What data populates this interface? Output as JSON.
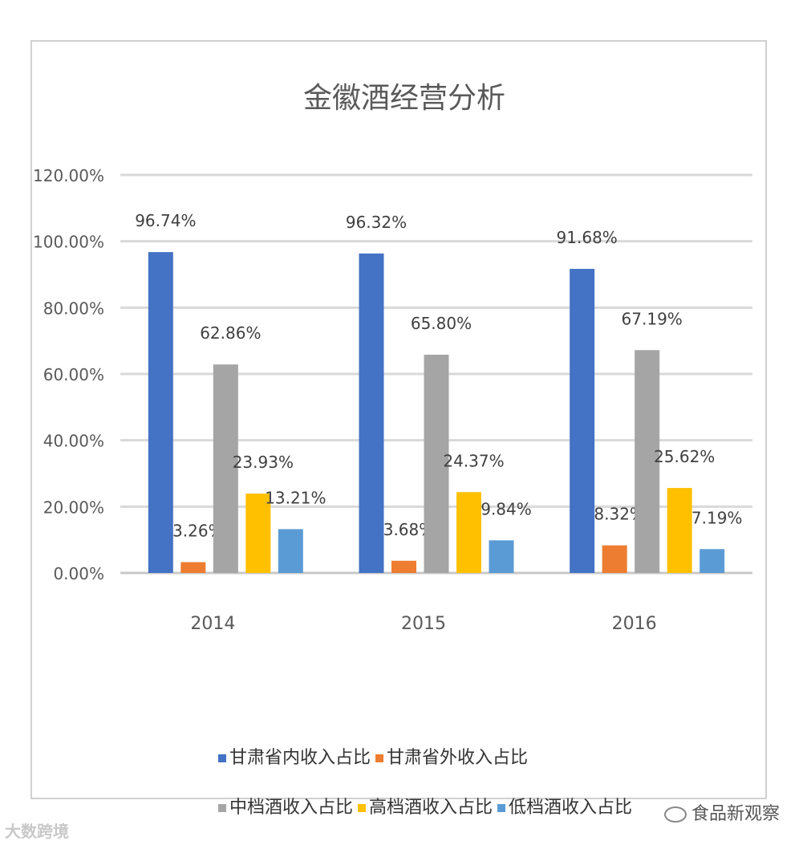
{
  "chart_data": {
    "type": "bar",
    "title": "金徽酒经营分析",
    "categories": [
      "2014",
      "2015",
      "2016"
    ],
    "ylim": [
      0,
      120
    ],
    "yticks": [
      "0.00%",
      "20.00%",
      "40.00%",
      "60.00%",
      "80.00%",
      "100.00%",
      "120.00%"
    ],
    "grid": true,
    "legend_position": "bottom",
    "series": [
      {
        "name": "甘肃省内收入占比",
        "color": "#4472c4",
        "values": [
          96.74,
          96.32,
          91.68
        ],
        "labels": [
          "96.74%",
          "96.32%",
          "91.68%"
        ]
      },
      {
        "name": "甘肃省外收入占比",
        "color": "#ed7d31",
        "values": [
          3.26,
          3.68,
          8.32
        ],
        "labels": [
          "3.26%",
          "3.68%",
          "8.32%"
        ]
      },
      {
        "name": "中档酒收入占比",
        "color": "#a5a5a5",
        "values": [
          62.86,
          65.8,
          67.19
        ],
        "labels": [
          "62.86%",
          "65.80%",
          "67.19%"
        ]
      },
      {
        "name": "高档酒收入占比",
        "color": "#ffc000",
        "values": [
          23.93,
          24.37,
          25.62
        ],
        "labels": [
          "23.93%",
          "24.37%",
          "25.62%"
        ]
      },
      {
        "name": "低档酒收入占比",
        "color": "#5b9bd5",
        "values": [
          13.21,
          9.84,
          7.19
        ],
        "labels": [
          "13.21%",
          "9.84%",
          "7.19%"
        ]
      }
    ]
  },
  "watermarks": {
    "left": "大数跨境",
    "right": "食品新观察"
  }
}
